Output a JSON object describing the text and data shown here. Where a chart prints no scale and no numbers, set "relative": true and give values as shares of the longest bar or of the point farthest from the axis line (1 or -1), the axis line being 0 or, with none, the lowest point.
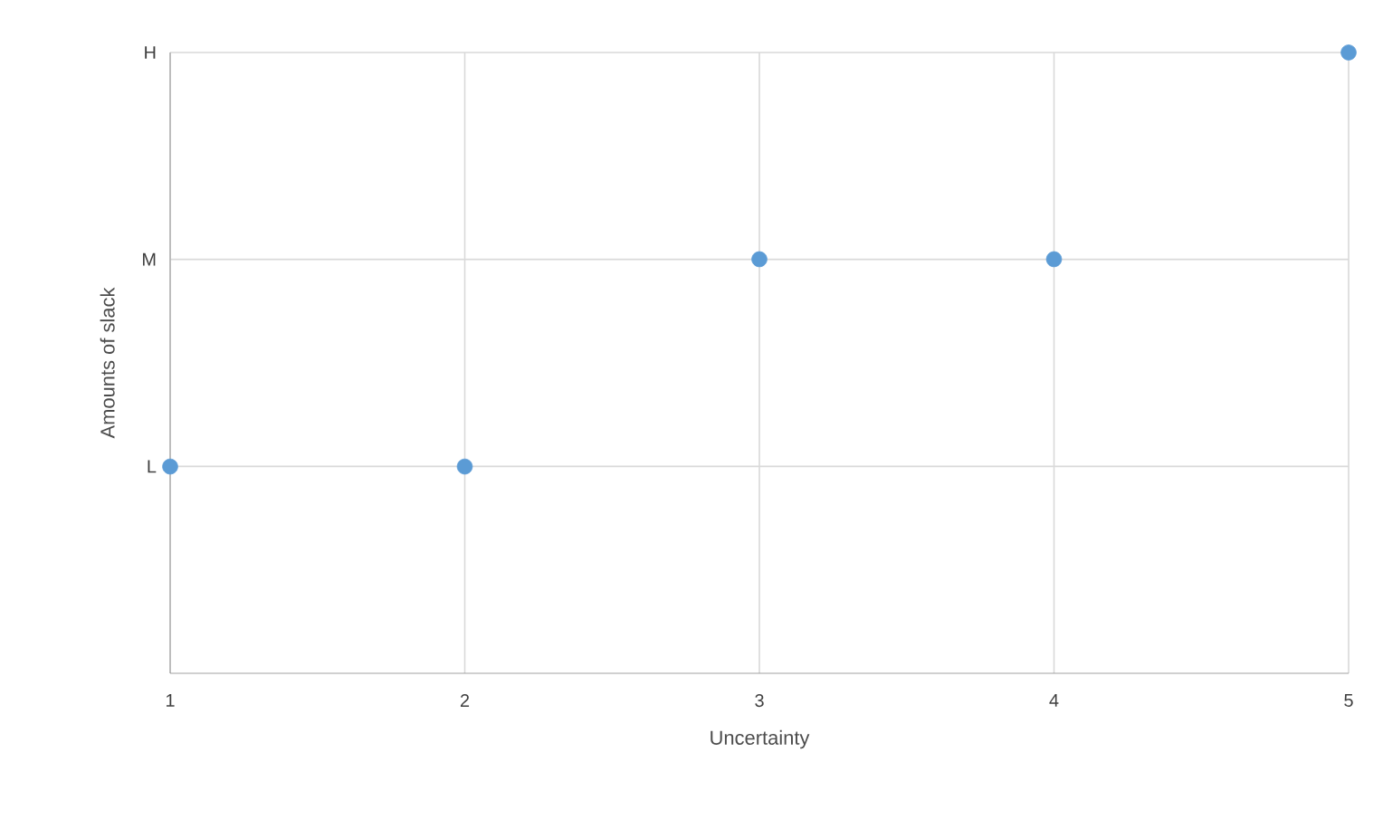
{
  "chart_data": {
    "type": "scatter",
    "xlabel": "Uncertainty",
    "ylabel": "Amounts of slack",
    "x": [
      1,
      2,
      3,
      4,
      5
    ],
    "relative": true,
    "series": [
      {
        "color": "#5b9bd5",
        "values": [
          0.333,
          0.333,
          0.667,
          0.667,
          1
        ]
      }
    ],
    "annotations": [
      "L",
      "M",
      "H"
    ],
    "xlim": [
      1,
      5
    ],
    "xticks": [
      1,
      2,
      3,
      4,
      5
    ],
    "grid": true
  }
}
